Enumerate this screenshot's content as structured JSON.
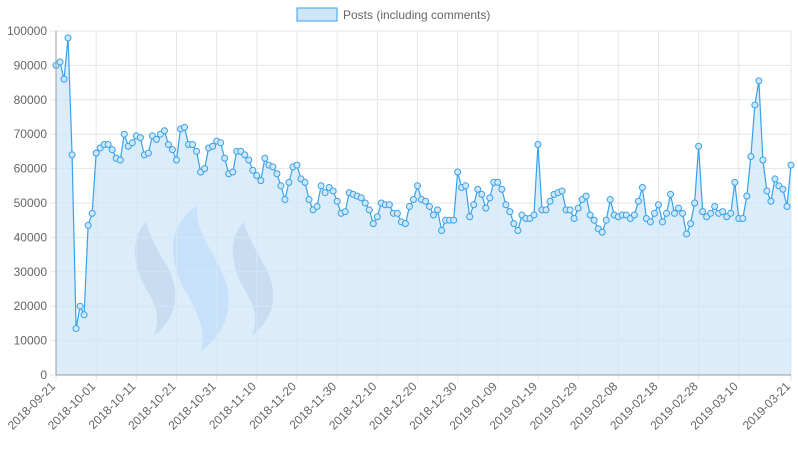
{
  "chart_data": {
    "type": "area",
    "legend": {
      "label": "Posts (including comments)",
      "position": "top"
    },
    "colors": {
      "line": "#36a2eb",
      "fill": "#cfe6f9",
      "grid": "#e6e6e6",
      "axis": "#999999",
      "text": "#666666",
      "logo_dark": "#9aaec8",
      "logo_light": "#9cc9f4"
    },
    "ylim": [
      0,
      100000
    ],
    "y_ticks": [
      0,
      10000,
      20000,
      30000,
      40000,
      50000,
      60000,
      70000,
      80000,
      90000,
      100000
    ],
    "x_tick_labels": [
      "2018-09-21",
      "2018-10-01",
      "2018-10-11",
      "2018-10-21",
      "2018-10-31",
      "2018-11-10",
      "2018-11-20",
      "2018-11-30",
      "2018-12-10",
      "2018-12-20",
      "2018-12-30",
      "2019-01-09",
      "2019-01-19",
      "2019-01-29",
      "2019-02-08",
      "2019-02-18",
      "2019-02-28",
      "2019-03-10",
      "2019-03-21"
    ],
    "grid": true,
    "values": [
      90000,
      91000,
      86000,
      98000,
      64000,
      13500,
      20000,
      17500,
      43500,
      47000,
      64500,
      66000,
      67000,
      67000,
      65500,
      63000,
      62500,
      70000,
      66500,
      67500,
      69500,
      69000,
      64000,
      64500,
      69500,
      68500,
      70000,
      71000,
      67000,
      65500,
      62500,
      71500,
      72000,
      67000,
      67000,
      65000,
      59000,
      60000,
      66000,
      66500,
      68000,
      67500,
      63000,
      58500,
      59000,
      65000,
      65000,
      64000,
      62500,
      59500,
      58000,
      56500,
      63000,
      61000,
      60500,
      58500,
      55000,
      51000,
      56000,
      60500,
      61000,
      57000,
      56000,
      51000,
      48000,
      49000,
      55000,
      53000,
      54500,
      53500,
      50500,
      47000,
      47500,
      53000,
      52500,
      52000,
      51500,
      50000,
      48000,
      44000,
      46000,
      50000,
      49500,
      49500,
      47000,
      47000,
      44500,
      44000,
      49000,
      51000,
      55000,
      51000,
      50500,
      49000,
      46500,
      48000,
      42000,
      45000,
      45000,
      45000,
      59000,
      54500,
      55000,
      46000,
      49500,
      54000,
      52500,
      48500,
      51500,
      56000,
      56000,
      54000,
      49500,
      47500,
      44000,
      42000,
      46500,
      45500,
      45500,
      46500,
      67000,
      48000,
      48000,
      50500,
      52500,
      53000,
      53500,
      48000,
      48000,
      45500,
      48500,
      51000,
      52000,
      46500,
      45000,
      42500,
      41500,
      45000,
      51000,
      46500,
      46000,
      46500,
      46500,
      45500,
      46500,
      50500,
      54500,
      45500,
      44500,
      47000,
      49500,
      44500,
      47000,
      52500,
      47000,
      48500,
      47000,
      41000,
      44000,
      50000,
      66500,
      47500,
      46000,
      47000,
      49000,
      47000,
      47500,
      46000,
      47000,
      56000,
      45500,
      45500,
      52000,
      63500,
      78500,
      85500,
      62500,
      53500,
      50500,
      57000,
      55000,
      54000,
      49000,
      61000
    ]
  }
}
